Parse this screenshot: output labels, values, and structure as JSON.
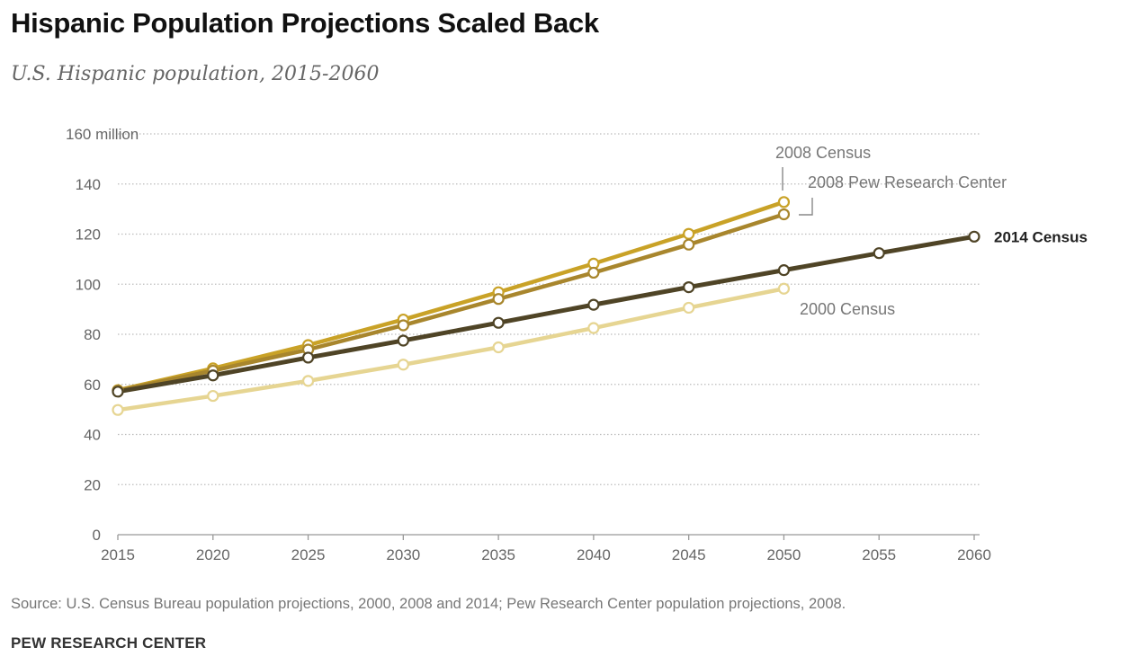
{
  "chart_data": {
    "type": "line",
    "title": "Hispanic Population Projections Scaled Back",
    "subtitle": "U.S. Hispanic population, 2015-2060",
    "xlabel": "",
    "ylabel": "",
    "x": [
      2015,
      2020,
      2025,
      2030,
      2035,
      2040,
      2045,
      2050,
      2055,
      2060
    ],
    "x_tick_labels": [
      "2015",
      "2020",
      "2025",
      "2030",
      "2035",
      "2040",
      "2045",
      "2050",
      "2055",
      "2060"
    ],
    "ylim": [
      0,
      160
    ],
    "y_ticks": [
      0,
      20,
      40,
      60,
      80,
      100,
      120,
      140,
      160
    ],
    "y_tick_labels": [
      "0",
      "20",
      "40",
      "60",
      "80",
      "100",
      "120",
      "140",
      "160 million"
    ],
    "grid": true,
    "series": [
      {
        "name": "2000 Census",
        "color": "#e6d592",
        "x": [
          2015,
          2020,
          2025,
          2030,
          2035,
          2040,
          2045,
          2050
        ],
        "values": [
          49.8,
          55.4,
          61.4,
          67.9,
          74.8,
          82.5,
          90.6,
          98.2
        ]
      },
      {
        "name": "2008 Census",
        "color": "#c9a227",
        "x": [
          2015,
          2020,
          2025,
          2030,
          2035,
          2040,
          2045,
          2050
        ],
        "values": [
          57.7,
          66.4,
          75.7,
          85.9,
          96.8,
          108.2,
          120.1,
          132.8
        ]
      },
      {
        "name": "2008 Pew Research Center",
        "color": "#a8862d",
        "x": [
          2015,
          2020,
          2025,
          2030,
          2035,
          2040,
          2045,
          2050
        ],
        "values": [
          57.5,
          65.5,
          73.9,
          83.6,
          94.1,
          104.6,
          115.8,
          127.9
        ]
      },
      {
        "name": "2014 Census",
        "color": "#4f4426",
        "x": [
          2015,
          2020,
          2025,
          2030,
          2035,
          2040,
          2045,
          2050,
          2055,
          2060
        ],
        "values": [
          57.1,
          63.6,
          70.7,
          77.5,
          84.6,
          91.8,
          98.8,
          105.6,
          112.4,
          119.0
        ]
      }
    ]
  },
  "source": "Source: U.S. Census Bureau population projections, 2000, 2008 and 2014; Pew Research Center population projections, 2008.",
  "organization": "PEW RESEARCH CENTER"
}
